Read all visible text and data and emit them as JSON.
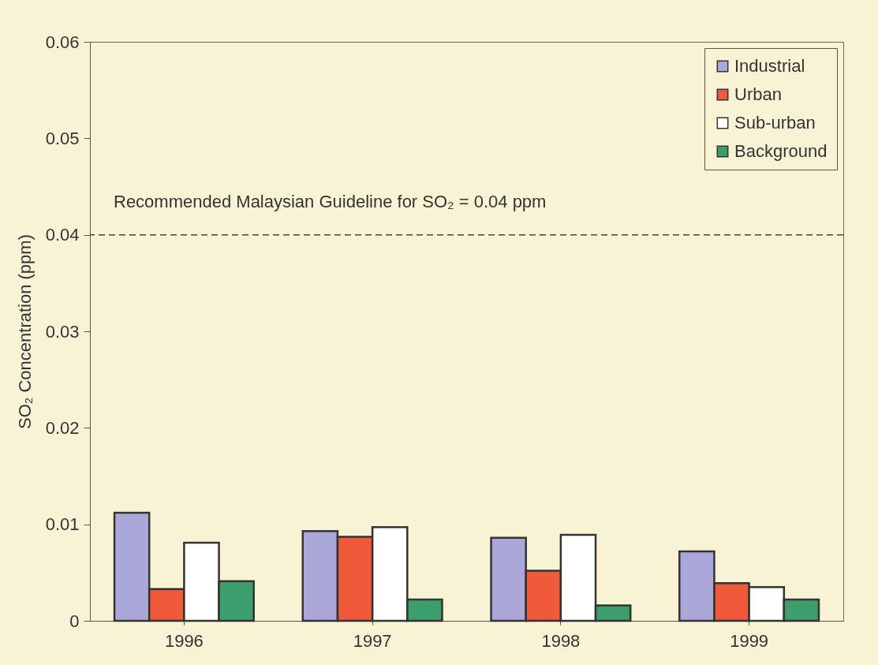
{
  "chart_data": {
    "type": "bar",
    "ylabel": "SO₂ Concentration (ppm)",
    "categories": [
      "1996",
      "1997",
      "1998",
      "1999"
    ],
    "series": [
      {
        "name": "Industrial",
        "color": "#aaa8d8",
        "values": [
          0.0112,
          0.0093,
          0.0086,
          0.0072
        ]
      },
      {
        "name": "Urban",
        "color": "#f05a3a",
        "values": [
          0.0033,
          0.0087,
          0.0052,
          0.0039
        ]
      },
      {
        "name": "Sub-urban",
        "color": "#ffffff",
        "values": [
          0.0081,
          0.0097,
          0.0089,
          0.0035
        ]
      },
      {
        "name": "Background",
        "color": "#3c9e6a",
        "values": [
          0.0041,
          0.0022,
          0.0016,
          0.0022
        ]
      }
    ],
    "ylim": [
      0,
      0.06
    ],
    "yticks": [
      0,
      0.01,
      0.02,
      0.03,
      0.04,
      0.05,
      0.06
    ],
    "ref_lines": [
      {
        "axis": "y",
        "value": 0.04,
        "label": "Recommended Malaysian Guideline for SO₂ = 0.04 ppm",
        "line_style": "dashed",
        "color": "#444444"
      }
    ],
    "grid": false,
    "legend": "top right"
  }
}
